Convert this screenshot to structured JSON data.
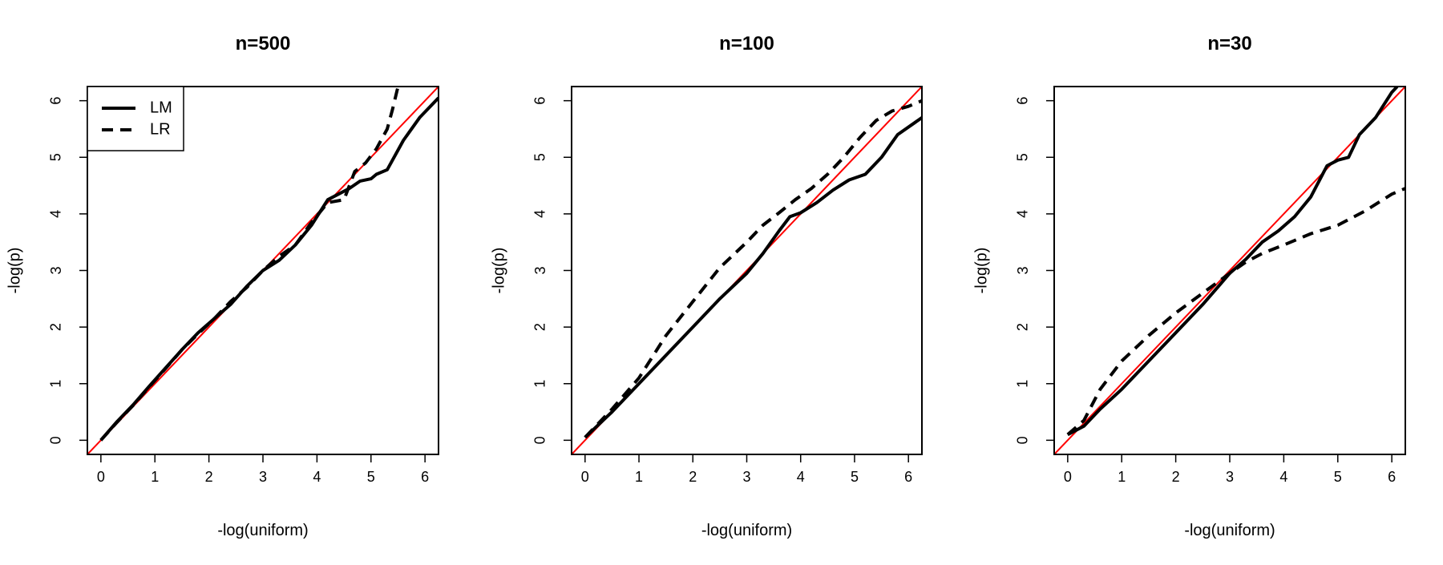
{
  "chart_data": [
    {
      "type": "line",
      "title": "n=500",
      "xlabel": "-log(uniform)",
      "ylabel": "-log(p)",
      "xlim": [
        -0.25,
        6.25
      ],
      "ylim": [
        -0.25,
        6.25
      ],
      "xticks": [
        "0",
        "1",
        "2",
        "3",
        "4",
        "5",
        "6"
      ],
      "yticks": [
        "0",
        "1",
        "2",
        "3",
        "4",
        "5",
        "6"
      ],
      "legend": {
        "position": "top-left",
        "entries": [
          {
            "label": "LM",
            "style": "solid"
          },
          {
            "label": "LR",
            "style": "dashed"
          }
        ]
      },
      "reference_line": {
        "color": "#ff0000",
        "from": [
          -0.25,
          -0.25
        ],
        "to": [
          6.25,
          6.25
        ]
      },
      "series": [
        {
          "name": "LM",
          "style": "solid",
          "color": "#000000",
          "x": [
            0,
            0.3,
            0.6,
            0.9,
            1.2,
            1.5,
            1.8,
            2.1,
            2.4,
            2.7,
            3.0,
            3.3,
            3.6,
            3.9,
            4.1,
            4.2,
            4.4,
            4.6,
            4.8,
            5.0,
            5.1,
            5.3,
            5.6,
            5.9,
            6.25
          ],
          "y": [
            0,
            0.33,
            0.63,
            0.96,
            1.28,
            1.6,
            1.9,
            2.15,
            2.4,
            2.72,
            3.0,
            3.18,
            3.45,
            3.8,
            4.1,
            4.25,
            4.35,
            4.45,
            4.58,
            4.62,
            4.7,
            4.78,
            5.3,
            5.7,
            6.05
          ]
        },
        {
          "name": "LR",
          "style": "dashed",
          "color": "#000000",
          "x": [
            0,
            0.3,
            0.6,
            0.9,
            1.2,
            1.5,
            1.8,
            2.1,
            2.4,
            2.7,
            3.0,
            3.3,
            3.6,
            3.9,
            4.2,
            4.5,
            4.7,
            4.9,
            5.1,
            5.3,
            5.4,
            5.5
          ],
          "y": [
            0,
            0.32,
            0.62,
            0.95,
            1.27,
            1.6,
            1.88,
            2.15,
            2.45,
            2.7,
            3.0,
            3.25,
            3.45,
            3.85,
            4.2,
            4.25,
            4.75,
            4.9,
            5.15,
            5.5,
            5.85,
            6.25
          ]
        }
      ]
    },
    {
      "type": "line",
      "title": "n=100",
      "xlabel": "-log(uniform)",
      "ylabel": "-log(p)",
      "xlim": [
        -0.25,
        6.25
      ],
      "ylim": [
        -0.25,
        6.25
      ],
      "xticks": [
        "0",
        "1",
        "2",
        "3",
        "4",
        "5",
        "6"
      ],
      "yticks": [
        "0",
        "1",
        "2",
        "3",
        "4",
        "5",
        "6"
      ],
      "reference_line": {
        "color": "#ff0000",
        "from": [
          -0.25,
          -0.25
        ],
        "to": [
          6.25,
          6.25
        ]
      },
      "series": [
        {
          "name": "LM",
          "style": "solid",
          "color": "#000000",
          "x": [
            0,
            0.5,
            1.0,
            1.5,
            2.0,
            2.5,
            3.0,
            3.3,
            3.6,
            3.8,
            4.0,
            4.3,
            4.6,
            4.9,
            5.2,
            5.5,
            5.8,
            6.25
          ],
          "y": [
            0.05,
            0.5,
            1.0,
            1.5,
            2.0,
            2.5,
            2.95,
            3.3,
            3.7,
            3.95,
            4.02,
            4.2,
            4.42,
            4.6,
            4.7,
            5.0,
            5.4,
            5.7
          ]
        },
        {
          "name": "LR",
          "style": "dashed",
          "color": "#000000",
          "x": [
            0,
            0.5,
            1.0,
            1.5,
            2.0,
            2.5,
            3.0,
            3.3,
            3.6,
            3.9,
            4.2,
            4.5,
            4.8,
            5.1,
            5.4,
            5.7,
            6.0,
            6.25
          ],
          "y": [
            0.05,
            0.55,
            1.1,
            1.85,
            2.45,
            3.05,
            3.5,
            3.8,
            4.02,
            4.25,
            4.45,
            4.7,
            5.0,
            5.35,
            5.65,
            5.82,
            5.9,
            6.0
          ]
        }
      ]
    },
    {
      "type": "line",
      "title": "n=30",
      "xlabel": "-log(uniform)",
      "ylabel": "-log(p)",
      "xlim": [
        -0.25,
        6.25
      ],
      "ylim": [
        -0.25,
        6.25
      ],
      "xticks": [
        "0",
        "1",
        "2",
        "3",
        "4",
        "5",
        "6"
      ],
      "yticks": [
        "0",
        "1",
        "2",
        "3",
        "4",
        "5",
        "6"
      ],
      "reference_line": {
        "color": "#ff0000",
        "from": [
          -0.25,
          -0.25
        ],
        "to": [
          6.25,
          6.25
        ]
      },
      "series": [
        {
          "name": "LM",
          "style": "solid",
          "color": "#000000",
          "x": [
            0,
            0.3,
            0.6,
            1.0,
            1.5,
            2.0,
            2.5,
            3.0,
            3.3,
            3.6,
            3.9,
            4.2,
            4.5,
            4.8,
            5.0,
            5.2,
            5.4,
            5.7,
            6.0,
            6.1
          ],
          "y": [
            0.1,
            0.25,
            0.55,
            0.9,
            1.4,
            1.9,
            2.4,
            2.95,
            3.2,
            3.5,
            3.7,
            3.95,
            4.3,
            4.85,
            4.95,
            5.0,
            5.4,
            5.7,
            6.15,
            6.25
          ]
        },
        {
          "name": "LR",
          "style": "dashed",
          "color": "#000000",
          "x": [
            0,
            0.3,
            0.6,
            1.0,
            1.5,
            2.0,
            2.5,
            3.0,
            3.3,
            3.6,
            4.0,
            4.5,
            5.0,
            5.5,
            6.0,
            6.25
          ],
          "y": [
            0.1,
            0.35,
            0.9,
            1.4,
            1.85,
            2.25,
            2.6,
            2.95,
            3.15,
            3.3,
            3.45,
            3.65,
            3.8,
            4.05,
            4.35,
            4.45
          ]
        }
      ]
    }
  ]
}
